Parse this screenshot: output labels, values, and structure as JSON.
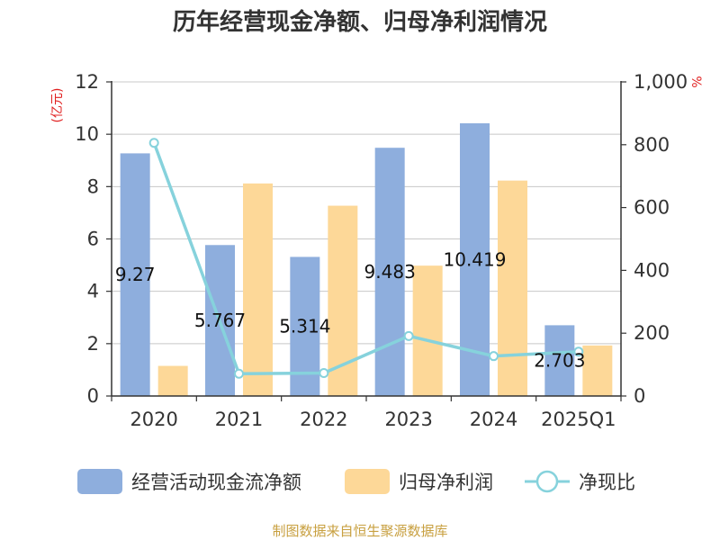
{
  "chart_data": {
    "type": "bar",
    "title": "历年经营现金净额、归母净利润情况",
    "categories": [
      "2020",
      "2021",
      "2022",
      "2023",
      "2024",
      "2025Q1"
    ],
    "left_axis": {
      "unit_label": "(亿元)",
      "ylim": [
        0,
        12
      ],
      "ticks": [
        "0",
        "2",
        "4",
        "6",
        "8",
        "10",
        "12"
      ]
    },
    "right_axis": {
      "unit_label": "%",
      "ylim": [
        0,
        1000
      ],
      "ticks": [
        "0",
        "200",
        "400",
        "600",
        "800",
        "1,000"
      ]
    },
    "series": [
      {
        "name": "经营活动现金流净额",
        "type": "bar",
        "axis": "left",
        "color": "#8eaedd",
        "values": [
          9.27,
          5.767,
          5.314,
          9.483,
          10.419,
          2.703
        ],
        "labels": [
          "9.27",
          "5.767",
          "5.314",
          "9.483",
          "10.419",
          "2.703"
        ]
      },
      {
        "name": "归母净利润",
        "type": "bar",
        "axis": "left",
        "color": "#fdd898",
        "values": [
          1.15,
          8.12,
          7.27,
          4.98,
          8.23,
          1.93
        ]
      },
      {
        "name": "净现比",
        "type": "line",
        "axis": "right",
        "color": "#86d2dc",
        "values": [
          806,
          71,
          73,
          191,
          127,
          141
        ]
      }
    ],
    "grid": true,
    "legend_position": "bottom"
  },
  "footer": {
    "source": "制图数据来自恒生聚源数据库"
  }
}
